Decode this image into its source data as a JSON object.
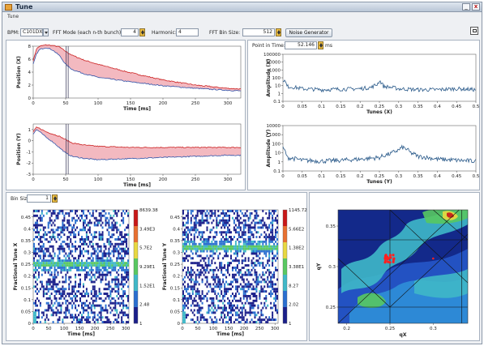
{
  "window": {
    "title": "Tune",
    "panel_label": "Tune",
    "minimize_label": "_",
    "close_label": "x"
  },
  "controls": {
    "bpm_label": "BPM:",
    "bpm_value": "C101DX",
    "fft_mode_label": "FFT Mode (each n-th bunch):",
    "fft_mode_value": "4",
    "harmonic_label": "Harmonic:",
    "harmonic_value": "4",
    "fft_bin_label": "FFT Bin Size:",
    "fft_bin_value": "512",
    "noise_button": "Noise Generator",
    "point_in_time_label": "Point in Time:",
    "point_in_time_value": "52.146",
    "point_in_time_unit": "ms",
    "bin_size_label": "Bin Size",
    "bin_size_value": "1"
  },
  "chart_data": [
    {
      "type": "line",
      "xlabel": "Time [ms]",
      "ylabel": "Position (X)",
      "x_ticks": [
        "0",
        "50",
        "100",
        "150",
        "200",
        "250",
        "300"
      ],
      "y_ticks": [
        "0",
        "2",
        "4",
        "6",
        "8"
      ],
      "xlim": [
        0,
        320
      ],
      "ylim": [
        0,
        8
      ],
      "cursor_x": 52,
      "series": [
        {
          "color": "#cc2222",
          "x": [
            0,
            5,
            10,
            20,
            30,
            40,
            50,
            60,
            80,
            100,
            150,
            200,
            250,
            300,
            320
          ],
          "y": [
            5.8,
            7.6,
            8.0,
            8.2,
            8.1,
            7.9,
            7.2,
            6.6,
            5.8,
            5.2,
            3.9,
            2.8,
            2.0,
            1.5,
            1.4
          ]
        },
        {
          "color": "#3355aa",
          "x": [
            0,
            5,
            10,
            20,
            30,
            40,
            50,
            60,
            80,
            100,
            150,
            200,
            250,
            300,
            320
          ],
          "y": [
            5.2,
            6.8,
            7.5,
            7.8,
            7.4,
            6.6,
            5.2,
            4.4,
            3.7,
            3.2,
            2.5,
            1.9,
            1.5,
            1.2,
            1.1
          ]
        }
      ]
    },
    {
      "type": "line",
      "xlabel": "Time [ms]",
      "ylabel": "Position (Y)",
      "x_ticks": [
        "0",
        "50",
        "100",
        "150",
        "200",
        "250",
        "300"
      ],
      "y_ticks": [
        "-3",
        "-2",
        "-1",
        "0",
        "1"
      ],
      "xlim": [
        0,
        320
      ],
      "ylim": [
        -3,
        1.5
      ],
      "cursor_x": 52,
      "series": [
        {
          "color": "#cc2222",
          "x": [
            0,
            5,
            10,
            20,
            30,
            40,
            50,
            60,
            80,
            100,
            150,
            200,
            250,
            300,
            320
          ],
          "y": [
            0.8,
            1.2,
            1.1,
            0.8,
            0.6,
            0.4,
            0.1,
            -0.2,
            -0.4,
            -0.5,
            -0.6,
            -0.6,
            -0.6,
            -0.6,
            -0.6
          ]
        },
        {
          "color": "#3355aa",
          "x": [
            0,
            5,
            10,
            20,
            30,
            40,
            50,
            60,
            80,
            100,
            150,
            200,
            250,
            300,
            320
          ],
          "y": [
            0.6,
            1.0,
            0.8,
            0.3,
            -0.1,
            -0.6,
            -1.1,
            -1.4,
            -1.6,
            -1.7,
            -1.6,
            -1.5,
            -1.4,
            -1.3,
            -1.3
          ]
        }
      ]
    },
    {
      "type": "line",
      "xlabel": "Tunes (X)",
      "ylabel": "Amplitude (X)",
      "log_y": true,
      "x_ticks": [
        "0",
        "0.05",
        "0.1",
        "0.15",
        "0.2",
        "0.25",
        "0.3",
        "0.35",
        "0.4",
        "0.45",
        "0.5"
      ],
      "y_ticks": [
        "0.1",
        "1",
        "10",
        "100",
        "1000",
        "10000",
        "100000"
      ],
      "xlim": [
        0,
        0.5
      ],
      "series": [
        {
          "color": "#2a5a8a",
          "x": [
            0,
            0.01,
            0.05,
            0.1,
            0.15,
            0.2,
            0.23,
            0.245,
            0.25,
            0.26,
            0.3,
            0.35,
            0.4,
            0.45,
            0.5
          ],
          "y": [
            60,
            8,
            4,
            3,
            3.5,
            4,
            6,
            15,
            40,
            8,
            4,
            3,
            3,
            4,
            3
          ]
        }
      ]
    },
    {
      "type": "line",
      "xlabel": "Tunes (Y)",
      "ylabel": "Amplitude (Y)",
      "log_y": true,
      "x_ticks": [
        "0",
        "0.05",
        "0.1",
        "0.15",
        "0.2",
        "0.25",
        "0.3",
        "0.35",
        "0.4",
        "0.45",
        "0.5"
      ],
      "y_ticks": [
        "0.1",
        "1",
        "10",
        "100",
        "1000",
        "10000"
      ],
      "xlim": [
        0,
        0.5
      ],
      "series": [
        {
          "color": "#2a5a8a",
          "x": [
            0,
            0.01,
            0.05,
            0.1,
            0.15,
            0.2,
            0.25,
            0.28,
            0.3,
            0.31,
            0.33,
            0.35,
            0.4,
            0.45,
            0.5
          ],
          "y": [
            30,
            3,
            1.5,
            1.2,
            1.5,
            2,
            3,
            8,
            20,
            40,
            10,
            4,
            2,
            1.5,
            1.2
          ]
        }
      ]
    },
    {
      "type": "heatmap",
      "xlabel": "Time [ms]",
      "ylabel": "Fractional Tune X",
      "x_ticks": [
        "0",
        "50",
        "100",
        "150",
        "200",
        "250",
        "300"
      ],
      "y_ticks": [
        "0",
        "0.05",
        "0.1",
        "0.15",
        "0.2",
        "0.25",
        "0.3",
        "0.35",
        "0.4",
        "0.45"
      ],
      "xlim": [
        0,
        310
      ],
      "ylim": [
        0,
        0.48
      ],
      "colorbar_ticks": [
        "8639.38",
        "3.49E3",
        "5.7E2",
        "9.29E1",
        "1.52E1",
        "2.48",
        "1"
      ],
      "tune_line": 0.25
    },
    {
      "type": "heatmap",
      "xlabel": "Time [ms]",
      "ylabel": "Fractional Tune Y",
      "x_ticks": [
        "0",
        "50",
        "100",
        "150",
        "200",
        "250",
        "300"
      ],
      "y_ticks": [
        "0",
        "0.05",
        "0.1",
        "0.15",
        "0.2",
        "0.25",
        "0.3",
        "0.35",
        "0.4",
        "0.45"
      ],
      "xlim": [
        0,
        310
      ],
      "ylim": [
        0,
        0.48
      ],
      "colorbar_ticks": [
        "1145.72",
        "5.66E2",
        "1.38E2",
        "3.38E1",
        "8.27",
        "2.02",
        "1"
      ],
      "tune_line": 0.32
    },
    {
      "type": "heatmap",
      "xlabel": "qX",
      "ylabel": "qY",
      "x_ticks": [
        "0.2",
        "0.25",
        "0.3"
      ],
      "y_ticks": [
        "0.25",
        "0.3",
        "0.35"
      ],
      "xlim": [
        0.19,
        0.34
      ],
      "ylim": [
        0.23,
        0.37
      ],
      "working_point": [
        0.25,
        0.31
      ]
    }
  ]
}
